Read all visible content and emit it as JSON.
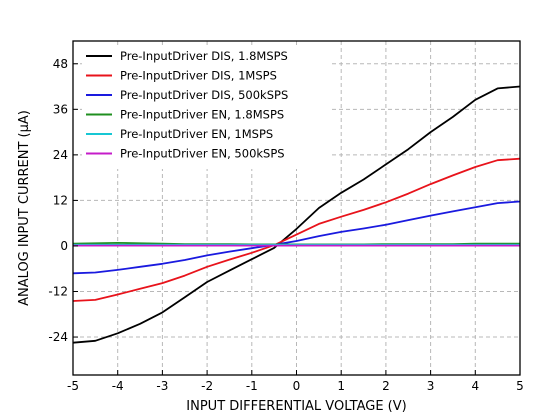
{
  "chart_data": {
    "type": "line",
    "title": "",
    "xlabel": "INPUT DIFFERENTIAL VOLTAGE (V)",
    "ylabel": "ANALOG INPUT CURRENT (μA)",
    "xlim": [
      -5,
      5
    ],
    "ylim": [
      -34,
      54
    ],
    "x_ticks": [
      -5,
      -4,
      -3,
      -2,
      -1,
      0,
      1,
      2,
      3,
      4,
      5
    ],
    "y_ticks": [
      -24,
      -12,
      0,
      12,
      24,
      36,
      48
    ],
    "grid": true,
    "legend_position": "top-left",
    "x": [
      -5,
      -4.5,
      -4,
      -3.5,
      -3,
      -2.5,
      -2,
      -1.5,
      -1,
      -0.5,
      0,
      0.5,
      1,
      1.5,
      2,
      2.5,
      3,
      3.5,
      4,
      4.5,
      5
    ],
    "series": [
      {
        "name": "Pre-InputDriver DIS, 1.8MSPS",
        "color": "#000000",
        "values": [
          -25.5,
          -25,
          -23,
          -20.5,
          -17.5,
          -13.5,
          -9.5,
          -6.5,
          -3.5,
          -0.5,
          4.5,
          10,
          14,
          17.5,
          21.5,
          25.5,
          30,
          34,
          38.5,
          41.5,
          42
        ]
      },
      {
        "name": "Pre-InputDriver DIS, 1MSPS",
        "color": "#e8131b",
        "values": [
          -14.5,
          -14.2,
          -12.8,
          -11.3,
          -9.8,
          -7.8,
          -5.5,
          -3.6,
          -1.8,
          0.2,
          3,
          5.8,
          7.7,
          9.5,
          11.5,
          13.8,
          16.3,
          18.6,
          20.8,
          22.6,
          23
        ]
      },
      {
        "name": "Pre-InputDriver DIS, 500kSPS",
        "color": "#1a1adf",
        "values": [
          -7.2,
          -7.0,
          -6.3,
          -5.5,
          -4.7,
          -3.7,
          -2.5,
          -1.5,
          -0.6,
          0.3,
          1.3,
          2.6,
          3.7,
          4.6,
          5.6,
          6.8,
          8.0,
          9.1,
          10.2,
          11.3,
          11.7
        ]
      },
      {
        "name": "Pre-InputDriver EN, 1.8MSPS",
        "color": "#1f8f1f",
        "values": [
          0.6,
          0.7,
          0.8,
          0.7,
          0.6,
          0.5,
          0.5,
          0.5,
          0.4,
          0.4,
          0.4,
          0.4,
          0.4,
          0.4,
          0.5,
          0.5,
          0.5,
          0.5,
          0.6,
          0.6,
          0.6
        ]
      },
      {
        "name": "Pre-InputDriver EN, 1MSPS",
        "color": "#17c7d4",
        "values": [
          0.3,
          0.3,
          0.3,
          0.3,
          0.3,
          0.3,
          0.3,
          0.3,
          0.3,
          0.3,
          0.3,
          0.3,
          0.3,
          0.3,
          0.3,
          0.3,
          0.3,
          0.3,
          0.3,
          0.3,
          0.3
        ]
      },
      {
        "name": "Pre-InputDriver EN, 500kSPS",
        "color": "#c51cc9",
        "values": [
          0.1,
          0.1,
          0.1,
          0.1,
          0.1,
          0.1,
          0.1,
          0.1,
          0.1,
          0.1,
          0.1,
          0.1,
          0.1,
          0.1,
          0.1,
          0.1,
          0.1,
          0.1,
          0.1,
          0.1,
          0.1
        ]
      }
    ]
  }
}
